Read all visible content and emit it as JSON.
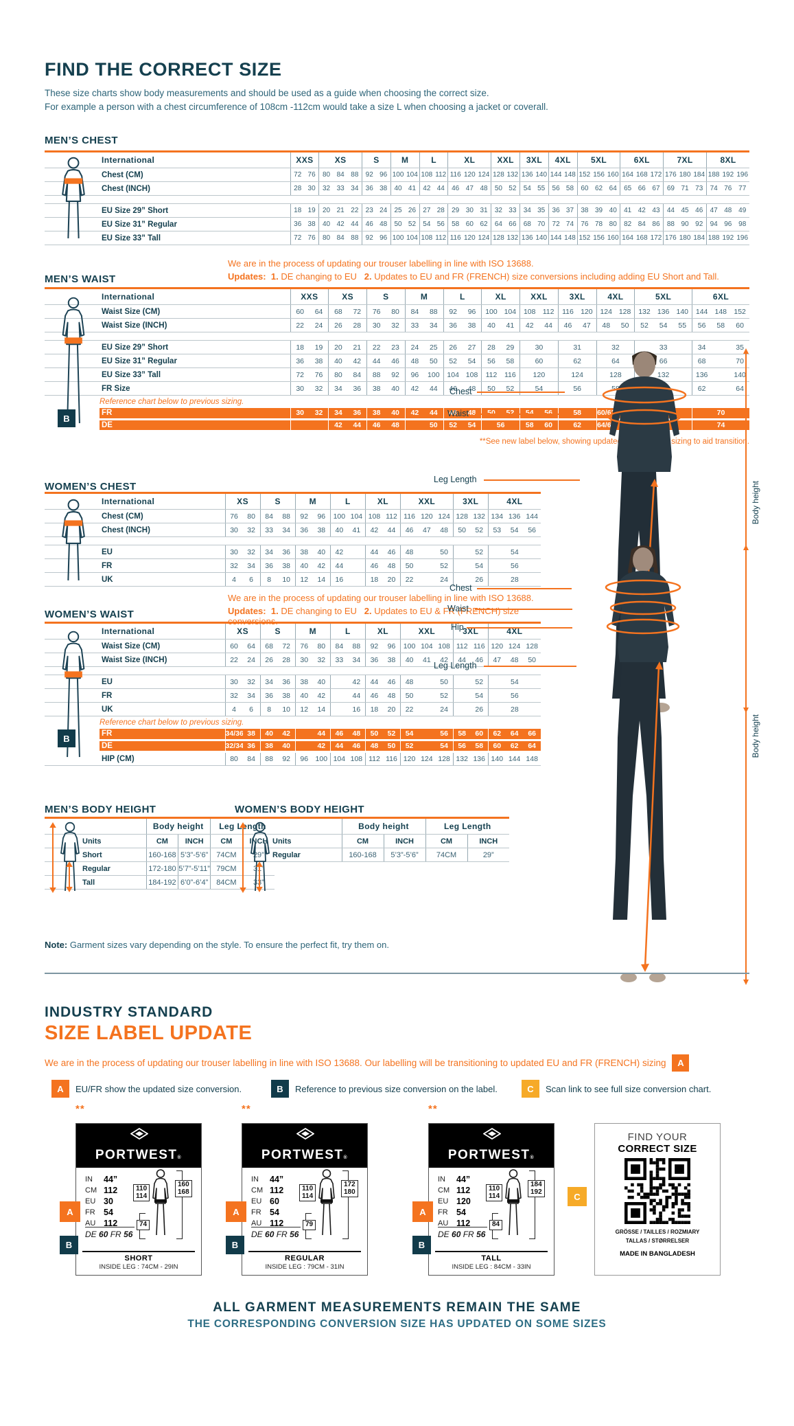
{
  "page": {
    "title": "FIND THE CORRECT SIZE",
    "intro_line1": "These size charts show body measurements and should be used as a guide when choosing the correct size.",
    "intro_line2": "For example a person with a chest circumference of 108cm -112cm would take a size L when choosing a jacket or coverall."
  },
  "badges": {
    "a": "A",
    "b": "B",
    "c": "C"
  },
  "figure_labels": {
    "chest": "Chest",
    "waist": "Waist",
    "hip": "Hip",
    "leg": "Leg Length",
    "height": "Body height"
  },
  "sections": {
    "mens_chest": {
      "heading": "MEN’S CHEST"
    },
    "mens_waist": {
      "heading": "MEN’S WAIST",
      "note1": "We are in the process of updating our trouser labelling in line with ISO 13688.",
      "updates_label": "Updates:",
      "update1_num": "1.",
      "update1": "DE changing to EU",
      "update2_num": "2.",
      "update2": "Updates to EU and FR (FRENCH) size conversions including adding EU Short and Tall.",
      "footnote": "**See new label below, showing updated and previous sizing to aid transition."
    },
    "womens_chest": {
      "heading": "WOMEN’S CHEST"
    },
    "womens_waist": {
      "heading": "WOMEN’S WAIST",
      "note1": "We are in the process of updating our trouser labelling in line with ISO 13688.",
      "updates_label": "Updates:",
      "update1_num": "1.",
      "update1": "DE changing to EU",
      "update2_num": "2.",
      "update2": "Updates to EU & FR (FRENCH) size conversions."
    },
    "mens_bh": {
      "heading": "MEN’S BODY HEIGHT"
    },
    "womens_bh": {
      "heading": "WOMEN’S BODY HEIGHT"
    },
    "note_label": "Note:",
    "note_text": "Garment sizes vary depending on the style. To ensure the perfect fit, try them on."
  },
  "tables": {
    "mens_chest": {
      "header_label": "International",
      "sizes": [
        {
          "n": "XXS",
          "s": 2
        },
        {
          "n": "XS",
          "s": 3
        },
        {
          "n": "S",
          "s": 2
        },
        {
          "n": "M",
          "s": 2
        },
        {
          "n": "L",
          "s": 2
        },
        {
          "n": "XL",
          "s": 3
        },
        {
          "n": "XXL",
          "s": 2
        },
        {
          "n": "3XL",
          "s": 2
        },
        {
          "n": "4XL",
          "s": 2
        },
        {
          "n": "5XL",
          "s": 3
        },
        {
          "n": "6XL",
          "s": 3
        },
        {
          "n": "7XL",
          "s": 3
        },
        {
          "n": "8XL",
          "s": 3
        }
      ],
      "rows": [
        {
          "label": "Chest (CM)",
          "vals": "72 76 80 84 88 92 96 100 104 108 112 116 120 124 128 132 136 140 144 148 152 156 160 164 168 172 176 180 184 188 192 196"
        },
        {
          "label": "Chest (INCH)",
          "vals": "28 30 32 33 34 36 38 40 41 42 44 46 47 48 50 52 54 55 56 58 60 62 64 65 66 67 69 71 73 74 76 77"
        },
        {
          "spacer": true
        },
        {
          "label": "EU Size 29” Short",
          "vals": "18 19 20 21 22 23 24 25 26 27 28 29 30 31 32 33 34 35 36 37 38 39 40 41 42 43 44 45 46 47 48 49"
        },
        {
          "label": "EU Size 31” Regular",
          "vals": "36 38 40 42 44 46 48 50 52 54 56 58 60 62 64 66 68 70 72 74 76 78 80 82 84 86 88 90 92 94 96 98"
        },
        {
          "label": "EU Size 33” Tall",
          "vals": "72 76 80 84 88 92 96 100 104 108 112 116 120 124 128 132 136 140 144 148 152 156 160 164 168 172 176 180 184 188 192 196"
        }
      ]
    },
    "mens_waist": {
      "header_label": "International",
      "sizes": [
        {
          "n": "XXS",
          "s": 2
        },
        {
          "n": "XS",
          "s": 2
        },
        {
          "n": "S",
          "s": 2
        },
        {
          "n": "M",
          "s": 2
        },
        {
          "n": "L",
          "s": 2
        },
        {
          "n": "XL",
          "s": 2
        },
        {
          "n": "XXL",
          "s": 2
        },
        {
          "n": "3XL",
          "s": 2
        },
        {
          "n": "4XL",
          "s": 2
        },
        {
          "n": "5XL",
          "s": 3
        },
        {
          "n": "6XL",
          "s": 3
        }
      ],
      "rows": [
        {
          "label": "Waist Size (CM)",
          "vals": "60 64 68 72 76 80 84 88 92 96 100 104 108 112 116 120 124 128 132 136 140 144 148 152"
        },
        {
          "label": "Waist Size (INCH)",
          "vals": "22 24 26 28 30 32 33 34 36 38 40 41 42 44 46 47 48 50 52 54 55 56 58 60"
        },
        {
          "spacer": true
        },
        {
          "label": "EU Size 29” Short",
          "cells": [
            "18",
            "19",
            "20",
            "21",
            "22",
            "23",
            "24",
            "25",
            "26",
            "27",
            "28",
            "29",
            {
              "t": "30",
              "s": 2
            },
            {
              "t": "31",
              "s": 2
            },
            {
              "t": "32",
              "s": 2
            },
            {
              "t": "33",
              "s": 3
            },
            "34",
            "",
            "35"
          ]
        },
        {
          "label": "EU Size 31” Regular",
          "cells": [
            "36",
            "38",
            "40",
            "42",
            "44",
            "46",
            "48",
            "50",
            "52",
            "54",
            "56",
            "58",
            {
              "t": "60",
              "s": 2
            },
            {
              "t": "62",
              "s": 2
            },
            {
              "t": "64",
              "s": 2
            },
            {
              "t": "66",
              "s": 3
            },
            "68",
            "",
            "70"
          ]
        },
        {
          "label": "EU Size 33” Tall",
          "cells": [
            "72",
            "76",
            "80",
            "84",
            "88",
            "92",
            "96",
            "100",
            "104",
            "108",
            "112",
            "116",
            {
              "t": "120",
              "s": 2
            },
            {
              "t": "124",
              "s": 2
            },
            {
              "t": "128",
              "s": 2
            },
            {
              "t": "132",
              "s": 3
            },
            "136",
            "",
            "140"
          ]
        },
        {
          "label": "FR Size",
          "cells": [
            "30",
            "32",
            "34",
            "36",
            "38",
            "40",
            "42",
            "44",
            "46",
            "48",
            "50",
            "52",
            {
              "t": "54",
              "s": 2
            },
            {
              "t": "56",
              "s": 2
            },
            {
              "t": "58",
              "s": 2
            },
            {
              "t": "60",
              "s": 3
            },
            "62",
            "",
            "64"
          ]
        },
        {
          "note": "Reference chart below to previous sizing."
        },
        {
          "label": "FR",
          "orange": true,
          "cells": [
            "30",
            "32",
            "34",
            "36",
            "38",
            "40",
            "42",
            "44",
            "46",
            "48",
            "50",
            "52",
            "54",
            "56",
            {
              "t": "58",
              "s": 2
            },
            "60/62",
            "64",
            "66",
            "68",
            "",
            {
              "t": "70",
              "s": 3
            }
          ]
        },
        {
          "label": "DE",
          "orange": true,
          "cells": [
            {
              "t": "",
              "s": 2
            },
            "42",
            "44",
            "46",
            "48",
            "",
            "50",
            "52",
            "54",
            {
              "t": "56",
              "s": 2
            },
            "58",
            "60",
            {
              "t": "62",
              "s": 2
            },
            "64/66",
            "68",
            "70",
            "72",
            "",
            {
              "t": "74",
              "s": 3
            }
          ]
        }
      ]
    },
    "womens_chest": {
      "header_label": "International",
      "sizes": [
        {
          "n": "XS",
          "s": 2
        },
        {
          "n": "S",
          "s": 2
        },
        {
          "n": "M",
          "s": 2
        },
        {
          "n": "L",
          "s": 2
        },
        {
          "n": "XL",
          "s": 2
        },
        {
          "n": "XXL",
          "s": 3
        },
        {
          "n": "3XL",
          "s": 2
        },
        {
          "n": "4XL",
          "s": 3
        }
      ],
      "rows": [
        {
          "label": "Chest (CM)",
          "vals": "76 80 84 88 92 96 100 104 108 112 116 120 124 128 132 134 136 144"
        },
        {
          "label": "Chest (INCH)",
          "vals": "30 32 33 34 36 38 40 41 42 44 46 47 48 50 52 53 54 56"
        },
        {
          "spacer": true
        },
        {
          "label": "EU",
          "cells": [
            "30",
            "32",
            "34",
            "36",
            "38",
            "40",
            "42",
            "",
            "44",
            "46",
            "48",
            "",
            "50",
            "",
            "52",
            {
              "t": "54",
              "s": 3
            }
          ]
        },
        {
          "label": "FR",
          "cells": [
            "32",
            "34",
            "36",
            "38",
            "40",
            "42",
            "44",
            "",
            "46",
            "48",
            "50",
            "",
            "52",
            "",
            "54",
            {
              "t": "56",
              "s": 3
            }
          ]
        },
        {
          "label": "UK",
          "cells": [
            "4",
            "6",
            "8",
            "10",
            "12",
            "14",
            "16",
            "",
            "18",
            "20",
            "22",
            "",
            "24",
            "",
            "26",
            {
              "t": "28",
              "s": 3
            }
          ]
        }
      ]
    },
    "womens_waist": {
      "header_label": "International",
      "sizes": [
        {
          "n": "XS",
          "s": 2
        },
        {
          "n": "S",
          "s": 2
        },
        {
          "n": "M",
          "s": 2
        },
        {
          "n": "L",
          "s": 2
        },
        {
          "n": "XL",
          "s": 2
        },
        {
          "n": "XXL",
          "s": 3
        },
        {
          "n": "3XL",
          "s": 2
        },
        {
          "n": "4XL",
          "s": 3
        }
      ],
      "rows": [
        {
          "label": "Waist Size (CM)",
          "vals": "60 64 68 72 76 80 84 88 92 96 100 104 108 112 116 120 124 128"
        },
        {
          "label": "Waist Size (INCH)",
          "vals": "22 24 26 28 30 32 33 34 36 38 40 41 42 44 46 47 48 50"
        },
        {
          "spacer": true
        },
        {
          "label": "EU",
          "cells": [
            "30",
            "32",
            "34",
            "36",
            "38",
            "40",
            "",
            "42",
            "44",
            "46",
            "48",
            "",
            "50",
            "",
            "52",
            {
              "t": "54",
              "s": 3
            }
          ]
        },
        {
          "label": "FR",
          "cells": [
            "32",
            "34",
            "36",
            "38",
            "40",
            "42",
            "",
            "44",
            "46",
            "48",
            "50",
            "",
            "52",
            "",
            "54",
            {
              "t": "56",
              "s": 3
            }
          ]
        },
        {
          "label": "UK",
          "cells": [
            "4",
            "6",
            "8",
            "10",
            "12",
            "14",
            "",
            "16",
            "18",
            "20",
            "22",
            "",
            "24",
            "",
            "26",
            {
              "t": "28",
              "s": 3
            }
          ]
        },
        {
          "note": "Reference chart below to previous sizing."
        },
        {
          "label": "FR",
          "orange": true,
          "cells": [
            "34/36",
            "38",
            "40",
            "42",
            "",
            "44",
            "46",
            "48",
            "50",
            "52",
            "54",
            "",
            "56",
            "58",
            "60",
            "62",
            "64",
            "66"
          ]
        },
        {
          "label": "DE",
          "orange": true,
          "cells": [
            "32/34",
            "36",
            "38",
            "40",
            "",
            "42",
            "44",
            "46",
            "48",
            "50",
            "52",
            "",
            "54",
            "56",
            "58",
            "60",
            "62",
            "64"
          ]
        },
        {
          "label": "HIP (CM)",
          "vals": "80 84 88 92 96 100 104 108 112 116 120 124 128 132 136 140 144 148"
        }
      ]
    },
    "mens_bh": {
      "col_groups": [
        "Body height",
        "Leg Length"
      ],
      "units_row": [
        "Units",
        "CM",
        "INCH",
        "CM",
        "INCH"
      ],
      "rows": [
        [
          "Short",
          "160-168",
          "5’3”-5’6”",
          "74CM",
          "29”"
        ],
        [
          "Regular",
          "172-180",
          "5’7”-5’11”",
          "79CM",
          "31”"
        ],
        [
          "Tall",
          "184-192",
          "6’0”-6’4”",
          "84CM",
          "33”"
        ]
      ]
    },
    "womens_bh": {
      "col_groups": [
        "Body height",
        "Leg Length"
      ],
      "units_row": [
        "Units",
        "CM",
        "INCH",
        "CM",
        "INCH"
      ],
      "rows": [
        [
          "Regular",
          "160-168",
          "5’3”-5’6”",
          "74CM",
          "29”"
        ]
      ]
    }
  },
  "update_section": {
    "heading1": "INDUSTRY STANDARD",
    "heading2": "SIZE LABEL UPDATE",
    "intro": "We are in the process of updating our trouser labelling in line with ISO 13688. Our labelling will be transitioning to updated EU and FR (FRENCH) sizing",
    "legend": [
      {
        "badge": "A",
        "text": "EU/FR show the updated size conversion."
      },
      {
        "badge": "B",
        "text": "Reference to previous size conversion on the label."
      },
      {
        "badge": "C",
        "text": "Scan link to see full size conversion chart."
      }
    ],
    "stars": "**",
    "brand": "PORTWEST",
    "brand_reg": "®",
    "cards": [
      {
        "rows": [
          [
            "IN",
            "44”"
          ],
          [
            "CM",
            "112"
          ],
          [
            "EU",
            "30"
          ],
          [
            "FR",
            "54"
          ],
          [
            "AU",
            "112"
          ]
        ],
        "prev": [
          "DE",
          "60",
          "FR",
          "56"
        ],
        "waist_box": [
          "110",
          "114"
        ],
        "height_box": [
          "160",
          "168"
        ],
        "leg_box": "74",
        "fit": "SHORT",
        "inside_leg": "INSIDE LEG : 74CM - 29IN"
      },
      {
        "rows": [
          [
            "IN",
            "44”"
          ],
          [
            "CM",
            "112"
          ],
          [
            "EU",
            "60"
          ],
          [
            "FR",
            "54"
          ],
          [
            "AU",
            "112"
          ]
        ],
        "prev": [
          "DE",
          "60",
          "FR",
          "56"
        ],
        "waist_box": [
          "110",
          "114"
        ],
        "height_box": [
          "172",
          "180"
        ],
        "leg_box": "79",
        "fit": "REGULAR",
        "inside_leg": "INSIDE LEG : 79CM - 31IN"
      },
      {
        "rows": [
          [
            "IN",
            "44”"
          ],
          [
            "CM",
            "112"
          ],
          [
            "EU",
            "120"
          ],
          [
            "FR",
            "54"
          ],
          [
            "AU",
            "112"
          ]
        ],
        "prev": [
          "DE",
          "60",
          "FR",
          "56"
        ],
        "waist_box": [
          "110",
          "114"
        ],
        "height_box": [
          "184",
          "192"
        ],
        "leg_box": "84",
        "fit": "TALL",
        "inside_leg": "INSIDE LEG : 84CM - 33IN"
      }
    ],
    "qr_card": {
      "t1": "FIND YOUR",
      "t2": "CORRECT SIZE",
      "langs1": "GRÖSSE / TAILLES / ROZMIARY",
      "langs2": "TALLAS  / STØRRELSER",
      "made": "MADE IN BANGLADESH"
    },
    "footer1": "ALL GARMENT MEASUREMENTS REMAIN THE SAME",
    "footer2": "THE CORRESPONDING CONVERSION SIZE HAS UPDATED ON SOME SIZES"
  }
}
